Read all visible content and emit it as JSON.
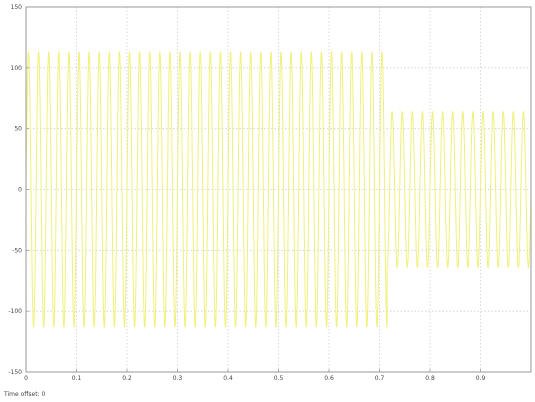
{
  "window": {
    "time_offset_label": "Time offset:",
    "time_offset_value": "0"
  },
  "colors": {
    "background": "#ffffff",
    "axes_frame": "#9a9a9a",
    "grid": "#d0d0d0",
    "signal": "#f0f07a"
  },
  "chart_data": {
    "type": "line",
    "title": "",
    "xlabel": "",
    "ylabel": "",
    "xlim": [
      0,
      1.0
    ],
    "ylim": [
      -150,
      150
    ],
    "x_ticks": [
      0,
      0.1,
      0.2,
      0.3,
      0.4,
      0.5,
      0.6,
      0.7,
      0.8,
      0.9
    ],
    "x_tick_labels": [
      "0",
      "0.1",
      "0.2",
      "0.3",
      "0.4",
      "0.5",
      "0.6",
      "0.7",
      "0.8",
      "0.9"
    ],
    "y_ticks": [
      150,
      100,
      50,
      0,
      -50,
      -100,
      -150
    ],
    "y_tick_labels": [
      "150",
      "100",
      "50",
      "0",
      "-50",
      "-100",
      "-150"
    ],
    "grid": true,
    "legend": "none",
    "series": [
      {
        "waveform": "sinusoid",
        "frequency_hz": 50,
        "segments": [
          {
            "x_start": 0.0,
            "x_end": 0.715,
            "amplitude": 113
          },
          {
            "x_start": 0.715,
            "x_end": 1.0,
            "amplitude": 64
          }
        ]
      }
    ]
  }
}
